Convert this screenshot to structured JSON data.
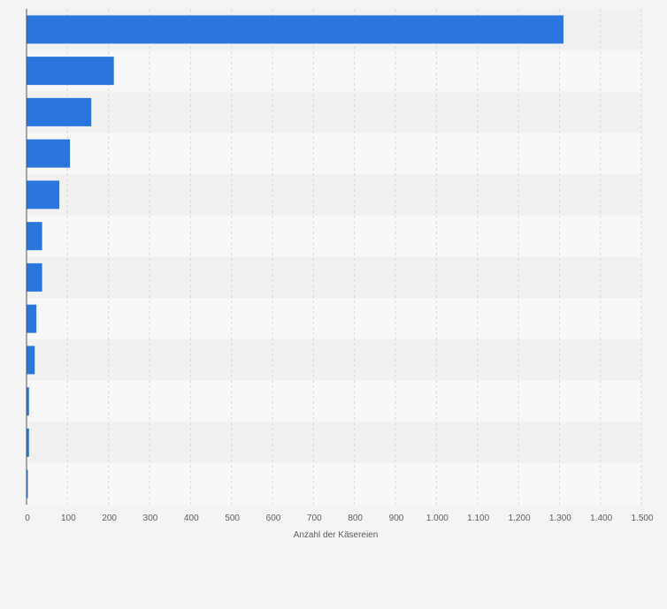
{
  "chart_data": {
    "type": "bar",
    "orientation": "horizontal",
    "title": "",
    "xlabel": "Anzahl der Käsereien",
    "ylabel": "",
    "categories": [
      "",
      "",
      "",
      "",
      "",
      "",
      "",
      "",
      "",
      "",
      "",
      ""
    ],
    "values": [
      1310,
      213,
      158,
      106,
      80,
      38,
      38,
      24,
      20,
      6,
      6,
      2
    ],
    "xlim": [
      0,
      1500
    ],
    "xticks": [
      0,
      100,
      200,
      300,
      400,
      500,
      600,
      700,
      800,
      900,
      1000,
      1100,
      1200,
      1300,
      1400,
      1500
    ],
    "xtick_labels": [
      "0",
      "100",
      "200",
      "300",
      "400",
      "500",
      "600",
      "700",
      "800",
      "900",
      "1.000",
      "1.100",
      "1.200",
      "1.300",
      "1.400",
      "1.500"
    ],
    "grid": true,
    "legend": "none",
    "colors": {
      "bar": "#2a76dd",
      "band_light": "#f8f8f8",
      "band_dark": "#f1f1f1",
      "grid": "#d9d9d9",
      "axis": "#555555",
      "background": "#f4f4f4"
    }
  }
}
